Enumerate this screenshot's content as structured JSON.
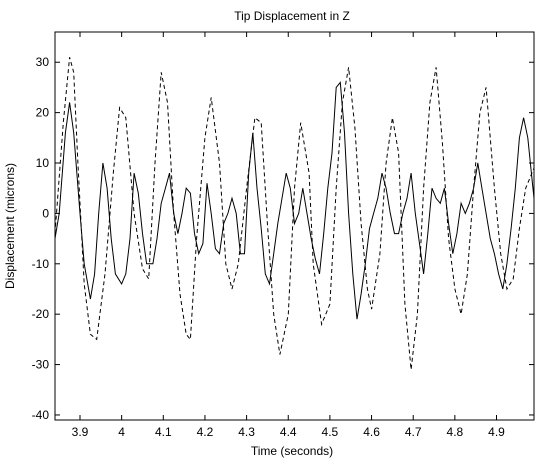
{
  "chart_data": {
    "type": "line",
    "title": "Tip Displacement in Z",
    "xlabel": "Time (seconds)",
    "ylabel": "Displacement (microns)",
    "xlim": [
      3.84,
      4.99
    ],
    "ylim": [
      -41,
      36
    ],
    "xticks": [
      3.9,
      4,
      4.1,
      4.2,
      4.3,
      4.4,
      4.5,
      4.6,
      4.7,
      4.8,
      4.9
    ],
    "xtick_labels": [
      "3.9",
      "4",
      "4.1",
      "4.2",
      "4.3",
      "4.4",
      "4.5",
      "4.6",
      "4.7",
      "4.8",
      "4.9"
    ],
    "yticks": [
      -40,
      -30,
      -20,
      -10,
      0,
      10,
      20,
      30
    ],
    "ytick_labels": [
      "-40",
      "-30",
      "-20",
      "-10",
      "0",
      "10",
      "20",
      "30"
    ],
    "grid": false,
    "series": [
      {
        "style": "dashed",
        "color": "#000000",
        "x": [
          3.84,
          3.86,
          3.875,
          3.885,
          3.895,
          3.91,
          3.925,
          3.94,
          3.96,
          3.98,
          3.995,
          4.01,
          4.03,
          4.05,
          4.065,
          4.08,
          4.095,
          4.11,
          4.125,
          4.14,
          4.155,
          4.165,
          4.18,
          4.2,
          4.215,
          4.235,
          4.25,
          4.265,
          4.28,
          4.3,
          4.32,
          4.335,
          4.35,
          4.365,
          4.38,
          4.4,
          4.415,
          4.43,
          4.45,
          4.46,
          4.48,
          4.5,
          4.515,
          4.53,
          4.545,
          4.56,
          4.575,
          4.59,
          4.6,
          4.62,
          4.635,
          4.65,
          4.665,
          4.68,
          4.695,
          4.71,
          4.725,
          4.74,
          4.755,
          4.77,
          4.785,
          4.8,
          4.815,
          4.83,
          4.845,
          4.86,
          4.875,
          4.895,
          4.91,
          4.925,
          4.94,
          4.955,
          4.97,
          4.99
        ],
        "y": [
          -4,
          18,
          31,
          28,
          10,
          -14,
          -24,
          -25,
          -12,
          8,
          21,
          19,
          0,
          -11,
          -13,
          10,
          28,
          22,
          0,
          -16,
          -24,
          -25,
          -5,
          15,
          23,
          10,
          -10,
          -15,
          -10,
          5,
          19,
          18,
          -2,
          -20,
          -28,
          -20,
          5,
          18,
          8,
          -10,
          -22,
          -18,
          5,
          22,
          29,
          17,
          -2,
          -15,
          -19,
          -8,
          10,
          19,
          12,
          -18,
          -31,
          -20,
          5,
          22,
          29,
          14,
          -5,
          -15,
          -20,
          -12,
          5,
          20,
          25,
          5,
          -8,
          -15,
          -13,
          -3,
          5,
          9
        ]
      },
      {
        "style": "solid",
        "color": "#000000",
        "x": [
          3.84,
          3.85,
          3.865,
          3.875,
          3.885,
          3.9,
          3.91,
          3.925,
          3.935,
          3.945,
          3.955,
          3.965,
          3.975,
          3.985,
          4.0,
          4.01,
          4.02,
          4.03,
          4.04,
          4.05,
          4.06,
          4.075,
          4.085,
          4.095,
          4.105,
          4.115,
          4.125,
          4.135,
          4.145,
          4.155,
          4.165,
          4.175,
          4.185,
          4.195,
          4.205,
          4.215,
          4.225,
          4.235,
          4.245,
          4.255,
          4.265,
          4.275,
          4.285,
          4.295,
          4.305,
          4.315,
          4.325,
          4.335,
          4.345,
          4.355,
          4.365,
          4.375,
          4.385,
          4.395,
          4.405,
          4.415,
          4.425,
          4.435,
          4.445,
          4.455,
          4.465,
          4.475,
          4.485,
          4.495,
          4.505,
          4.515,
          4.525,
          4.535,
          4.545,
          4.555,
          4.565,
          4.575,
          4.585,
          4.595,
          4.605,
          4.615,
          4.625,
          4.635,
          4.645,
          4.655,
          4.665,
          4.675,
          4.685,
          4.695,
          4.705,
          4.715,
          4.725,
          4.735,
          4.745,
          4.755,
          4.765,
          4.775,
          4.785,
          4.795,
          4.805,
          4.815,
          4.825,
          4.835,
          4.845,
          4.855,
          4.865,
          4.875,
          4.885,
          4.895,
          4.905,
          4.915,
          4.925,
          4.935,
          4.945,
          4.955,
          4.965,
          4.975,
          4.985,
          4.99
        ],
        "y": [
          -5,
          0,
          16,
          22,
          16,
          0,
          -10,
          -17,
          -12,
          0,
          10,
          5,
          -5,
          -12,
          -14,
          -12,
          -5,
          8,
          4,
          -4,
          -10,
          -10,
          -5,
          2,
          5,
          8,
          0,
          -4,
          0,
          5,
          4,
          -4,
          -8,
          -6,
          6,
          0,
          -7,
          -8,
          -2,
          0,
          3,
          0,
          -8,
          -8,
          8,
          16,
          5,
          -3,
          -12,
          -14,
          -8,
          -2,
          3,
          8,
          5,
          -2,
          0,
          5,
          0,
          -5,
          -9,
          -12,
          -4,
          5,
          12,
          25,
          26,
          16,
          0,
          -12,
          -21,
          -16,
          -10,
          -3,
          0,
          3,
          8,
          5,
          0,
          -4,
          -4,
          0,
          3,
          8,
          0,
          -6,
          -12,
          -4,
          5,
          3,
          2,
          5,
          -2,
          -8,
          -4,
          2,
          0,
          2,
          5,
          10,
          5,
          0,
          -5,
          -8,
          -12,
          -15,
          -10,
          -3,
          5,
          15,
          19,
          15,
          7,
          3
        ]
      }
    ]
  }
}
